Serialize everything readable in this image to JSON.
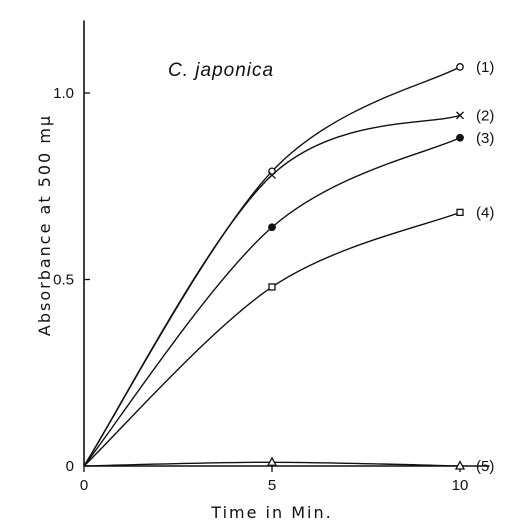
{
  "chart_data": {
    "type": "line",
    "title": "C. japonica",
    "xlabel": "Time in Min.",
    "ylabel": "Absorbance at 500 mμ",
    "xlim": [
      0,
      11
    ],
    "ylim": [
      0,
      1.2
    ],
    "xticks": [
      {
        "value": 0,
        "label": "0"
      },
      {
        "value": 5,
        "label": "5"
      },
      {
        "value": 10,
        "label": "10"
      }
    ],
    "yticks": [
      {
        "value": 0,
        "label": "0"
      },
      {
        "value": 0.5,
        "label": "0.5"
      },
      {
        "value": 1.0,
        "label": "1.0"
      }
    ],
    "grid": false,
    "series": [
      {
        "name": "(1)",
        "marker": "open-circle",
        "x": [
          0,
          5,
          10
        ],
        "y": [
          0,
          0.79,
          1.07
        ]
      },
      {
        "name": "(2)",
        "marker": "cross",
        "x": [
          0,
          5,
          10
        ],
        "y": [
          0,
          0.78,
          0.94
        ]
      },
      {
        "name": "(3)",
        "marker": "filled-circle",
        "x": [
          0,
          5,
          10
        ],
        "y": [
          0,
          0.64,
          0.88
        ]
      },
      {
        "name": "(4)",
        "marker": "open-square",
        "x": [
          0,
          5,
          10
        ],
        "y": [
          0,
          0.48,
          0.68
        ]
      },
      {
        "name": "(5)",
        "marker": "open-triangle",
        "x": [
          0,
          5,
          10
        ],
        "y": [
          0,
          0.01,
          0.0
        ]
      }
    ]
  }
}
